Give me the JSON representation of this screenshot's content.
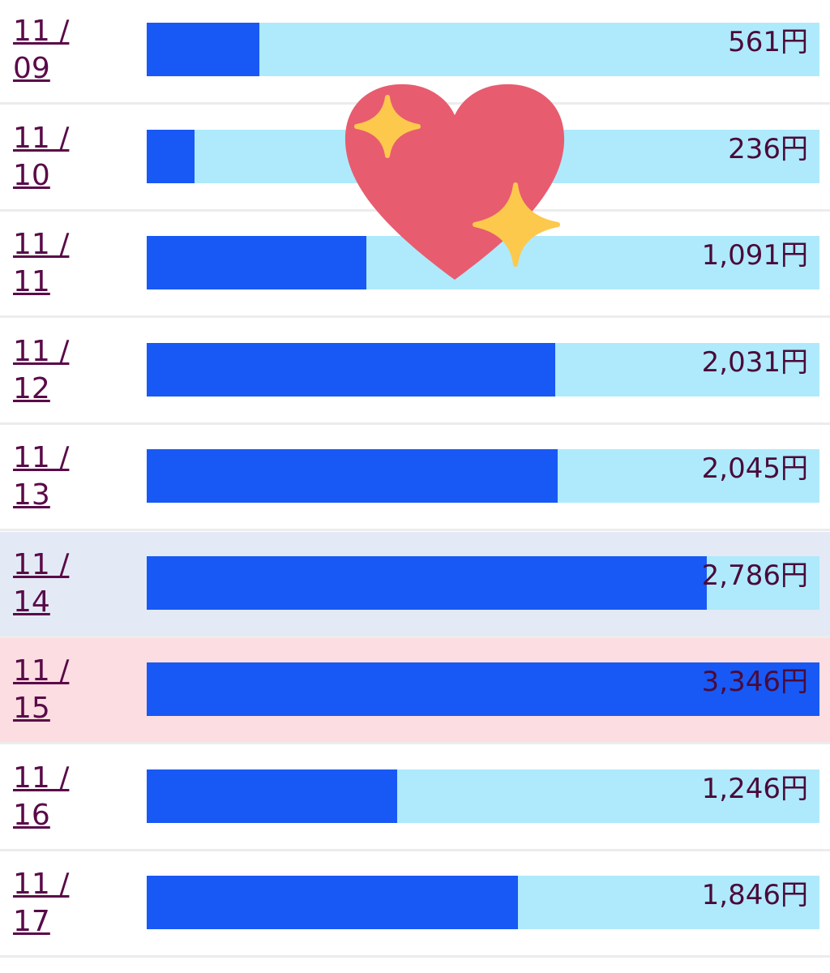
{
  "rows": [
    {
      "date": "11 / 09",
      "value": 561,
      "value_label": "561円"
    },
    {
      "date": "11 / 10",
      "value": 236,
      "value_label": "236円"
    },
    {
      "date": "11 / 11",
      "value": 1091,
      "value_label": "1,091円"
    },
    {
      "date": "11 / 12",
      "value": 2031,
      "value_label": "2,031円"
    },
    {
      "date": "11 / 13",
      "value": 2045,
      "value_label": "2,045円"
    },
    {
      "date": "11 / 14",
      "value": 2786,
      "value_label": "2,786円",
      "background": "#e3eaf6"
    },
    {
      "date": "11 / 15",
      "value": 3346,
      "value_label": "3,346円",
      "background": "#fcdde2"
    },
    {
      "date": "11 / 16",
      "value": 1246,
      "value_label": "1,246円"
    },
    {
      "date": "11 / 17",
      "value": 1846,
      "value_label": "1,846円"
    }
  ]
}
